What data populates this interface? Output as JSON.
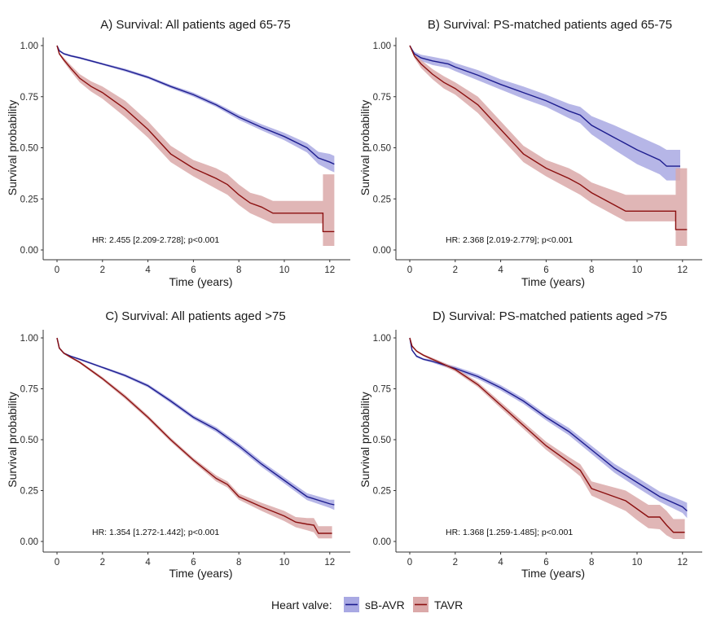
{
  "legend": {
    "title": "Heart valve:",
    "items": [
      {
        "label": "sB-AVR",
        "line_color": "#1d1d8f",
        "band_color": "#a9a9e3"
      },
      {
        "label": "TAVR",
        "line_color": "#8b1010",
        "band_color": "#dba9a9"
      }
    ]
  },
  "chart_data": [
    {
      "type": "line",
      "panel": "A",
      "title": "A) Survival: All patients aged 65-75",
      "xlabel": "Time (years)",
      "ylabel": "Survival probability",
      "x_ticks": [
        "0",
        "2",
        "4",
        "6",
        "8",
        "10",
        "12"
      ],
      "y_ticks": [
        "0.00",
        "0.25",
        "0.50",
        "0.75",
        "1.00"
      ],
      "xlim": [
        0,
        12.5
      ],
      "ylim": [
        0,
        1
      ],
      "annotation": "HR: 2.455 [2.209-2.728]; p<0.001",
      "series": [
        {
          "name": "sB-AVR",
          "x": [
            0,
            0.1,
            0.3,
            0.6,
            1,
            2,
            3,
            4,
            5,
            6,
            7,
            8,
            9,
            10,
            11,
            11.5,
            12,
            12.2
          ],
          "y": [
            1.0,
            0.975,
            0.96,
            0.95,
            0.94,
            0.91,
            0.88,
            0.845,
            0.8,
            0.76,
            0.71,
            0.65,
            0.6,
            0.555,
            0.5,
            0.45,
            0.43,
            0.42
          ],
          "lower": [
            1.0,
            0.97,
            0.955,
            0.945,
            0.935,
            0.905,
            0.873,
            0.838,
            0.792,
            0.75,
            0.7,
            0.637,
            0.585,
            0.537,
            0.477,
            0.42,
            0.39,
            0.38
          ],
          "upper": [
            1.0,
            0.98,
            0.965,
            0.955,
            0.945,
            0.915,
            0.887,
            0.852,
            0.808,
            0.77,
            0.72,
            0.663,
            0.615,
            0.573,
            0.523,
            0.48,
            0.47,
            0.46
          ]
        },
        {
          "name": "TAVR",
          "x": [
            0,
            0.1,
            0.3,
            0.6,
            1,
            1.5,
            2,
            3,
            4,
            5,
            6,
            7,
            7.5,
            8,
            8.5,
            9,
            9.5,
            11.7,
            11.7,
            12.2
          ],
          "y": [
            1.0,
            0.96,
            0.93,
            0.89,
            0.84,
            0.8,
            0.77,
            0.69,
            0.59,
            0.47,
            0.4,
            0.35,
            0.32,
            0.27,
            0.23,
            0.21,
            0.18,
            0.18,
            0.09,
            0.09
          ],
          "lower": [
            1.0,
            0.955,
            0.92,
            0.875,
            0.82,
            0.775,
            0.74,
            0.65,
            0.55,
            0.43,
            0.36,
            0.3,
            0.27,
            0.22,
            0.18,
            0.155,
            0.13,
            0.13,
            0.02,
            0.02
          ],
          "upper": [
            1.0,
            0.965,
            0.94,
            0.905,
            0.86,
            0.825,
            0.8,
            0.73,
            0.63,
            0.51,
            0.44,
            0.4,
            0.37,
            0.32,
            0.28,
            0.265,
            0.24,
            0.24,
            0.37,
            0.37
          ]
        }
      ]
    },
    {
      "type": "line",
      "panel": "B",
      "title": "B) Survival: PS-matched patients aged 65-75",
      "xlabel": "Time (years)",
      "ylabel": "Survival probability",
      "x_ticks": [
        "0",
        "2",
        "4",
        "6",
        "8",
        "10",
        "12"
      ],
      "y_ticks": [
        "0.00",
        "0.25",
        "0.50",
        "0.75",
        "1.00"
      ],
      "xlim": [
        0,
        12.5
      ],
      "ylim": [
        0,
        1
      ],
      "annotation": "HR: 2.368 [2.019-2.779]; p<0.001",
      "series": [
        {
          "name": "sB-AVR",
          "x": [
            0,
            0.2,
            0.5,
            1,
            1.7,
            2,
            3,
            4,
            5,
            6,
            7,
            7.5,
            8,
            9,
            10,
            11,
            11.3,
            11.9
          ],
          "y": [
            1.0,
            0.96,
            0.94,
            0.925,
            0.91,
            0.895,
            0.855,
            0.81,
            0.77,
            0.73,
            0.68,
            0.66,
            0.61,
            0.55,
            0.49,
            0.44,
            0.41,
            0.41
          ],
          "lower": [
            1.0,
            0.95,
            0.925,
            0.905,
            0.89,
            0.875,
            0.83,
            0.785,
            0.74,
            0.7,
            0.645,
            0.62,
            0.565,
            0.49,
            0.42,
            0.37,
            0.34,
            0.34
          ],
          "upper": [
            1.0,
            0.97,
            0.955,
            0.945,
            0.93,
            0.915,
            0.88,
            0.835,
            0.8,
            0.76,
            0.715,
            0.7,
            0.655,
            0.61,
            0.56,
            0.51,
            0.49,
            0.49
          ]
        },
        {
          "name": "TAVR",
          "x": [
            0,
            0.2,
            0.5,
            1,
            1.5,
            2,
            3,
            4,
            5,
            6,
            7,
            7.5,
            8,
            8.5,
            9,
            9.5,
            11.7,
            11.7,
            12.2
          ],
          "y": [
            1.0,
            0.95,
            0.91,
            0.86,
            0.82,
            0.79,
            0.71,
            0.59,
            0.47,
            0.4,
            0.35,
            0.32,
            0.28,
            0.25,
            0.22,
            0.19,
            0.19,
            0.1,
            0.1
          ],
          "lower": [
            1.0,
            0.94,
            0.89,
            0.835,
            0.79,
            0.76,
            0.67,
            0.55,
            0.43,
            0.36,
            0.3,
            0.27,
            0.23,
            0.2,
            0.17,
            0.14,
            0.14,
            0.02,
            0.02
          ],
          "upper": [
            1.0,
            0.96,
            0.93,
            0.885,
            0.85,
            0.82,
            0.75,
            0.63,
            0.51,
            0.44,
            0.4,
            0.37,
            0.33,
            0.31,
            0.29,
            0.27,
            0.27,
            0.4,
            0.4
          ]
        }
      ]
    },
    {
      "type": "line",
      "panel": "C",
      "title": "C) Survival: All patients aged >75",
      "xlabel": "Time (years)",
      "ylabel": "Survival probability",
      "x_ticks": [
        "0",
        "2",
        "4",
        "6",
        "8",
        "10",
        "12"
      ],
      "y_ticks": [
        "0.00",
        "0.25",
        "0.50",
        "0.75",
        "1.00"
      ],
      "xlim": [
        0,
        12.5
      ],
      "ylim": [
        0,
        1
      ],
      "annotation": "HR: 1.354 [1.272-1.442]; p<0.001",
      "series": [
        {
          "name": "sB-AVR",
          "x": [
            0,
            0.1,
            0.3,
            0.6,
            1,
            2,
            3,
            4,
            5,
            6,
            7,
            8,
            9,
            10,
            11,
            12,
            12.2
          ],
          "y": [
            1.0,
            0.95,
            0.925,
            0.91,
            0.895,
            0.855,
            0.815,
            0.765,
            0.69,
            0.61,
            0.55,
            0.47,
            0.38,
            0.3,
            0.22,
            0.185,
            0.18
          ],
          "lower": [
            1.0,
            0.947,
            0.922,
            0.906,
            0.89,
            0.85,
            0.808,
            0.757,
            0.68,
            0.6,
            0.538,
            0.457,
            0.366,
            0.285,
            0.203,
            0.165,
            0.155
          ],
          "upper": [
            1.0,
            0.953,
            0.928,
            0.914,
            0.9,
            0.86,
            0.822,
            0.773,
            0.7,
            0.62,
            0.562,
            0.483,
            0.394,
            0.315,
            0.237,
            0.205,
            0.205
          ]
        },
        {
          "name": "TAVR",
          "x": [
            0,
            0.1,
            0.3,
            0.6,
            1,
            2,
            3,
            4,
            5,
            6,
            7,
            7.5,
            8,
            9,
            10,
            10.5,
            11,
            11.3,
            11.5,
            12.1
          ],
          "y": [
            1.0,
            0.95,
            0.925,
            0.905,
            0.88,
            0.8,
            0.71,
            0.61,
            0.5,
            0.4,
            0.31,
            0.28,
            0.22,
            0.17,
            0.125,
            0.095,
            0.085,
            0.08,
            0.04,
            0.04
          ],
          "lower": [
            1.0,
            0.947,
            0.92,
            0.9,
            0.874,
            0.792,
            0.7,
            0.6,
            0.49,
            0.39,
            0.295,
            0.265,
            0.205,
            0.15,
            0.1,
            0.07,
            0.055,
            0.045,
            0.015,
            0.015
          ],
          "upper": [
            1.0,
            0.953,
            0.93,
            0.91,
            0.886,
            0.808,
            0.72,
            0.62,
            0.51,
            0.41,
            0.325,
            0.295,
            0.235,
            0.19,
            0.15,
            0.12,
            0.115,
            0.115,
            0.075,
            0.075
          ]
        }
      ]
    },
    {
      "type": "line",
      "panel": "D",
      "title": "D) Survival: PS-matched patients aged >75",
      "xlabel": "Time (years)",
      "ylabel": "Survival probability",
      "x_ticks": [
        "0",
        "2",
        "4",
        "6",
        "8",
        "10",
        "12"
      ],
      "y_ticks": [
        "0.00",
        "0.25",
        "0.50",
        "0.75",
        "1.00"
      ],
      "xlim": [
        0,
        12.5
      ],
      "ylim": [
        0,
        1
      ],
      "annotation": "HR: 1.368 [1.259-1.485]; p<0.001",
      "series": [
        {
          "name": "sB-AVR",
          "x": [
            0,
            0.1,
            0.3,
            0.6,
            1,
            2,
            3,
            4,
            5,
            6,
            7,
            8,
            9,
            10,
            11,
            12,
            12.2
          ],
          "y": [
            1.0,
            0.94,
            0.91,
            0.895,
            0.885,
            0.85,
            0.81,
            0.755,
            0.69,
            0.61,
            0.54,
            0.45,
            0.36,
            0.29,
            0.22,
            0.17,
            0.15
          ],
          "lower": [
            1.0,
            0.935,
            0.905,
            0.89,
            0.878,
            0.84,
            0.798,
            0.742,
            0.676,
            0.595,
            0.522,
            0.43,
            0.338,
            0.265,
            0.195,
            0.14,
            0.115
          ],
          "upper": [
            1.0,
            0.945,
            0.915,
            0.9,
            0.892,
            0.86,
            0.822,
            0.768,
            0.704,
            0.625,
            0.558,
            0.47,
            0.382,
            0.315,
            0.245,
            0.2,
            0.19
          ]
        },
        {
          "name": "TAVR",
          "x": [
            0,
            0.1,
            0.3,
            0.6,
            1,
            2,
            3,
            4,
            5,
            6,
            7,
            7.5,
            8,
            8.5,
            9,
            9.5,
            10,
            10.5,
            11,
            11.3,
            11.6,
            12.1
          ],
          "y": [
            1.0,
            0.96,
            0.935,
            0.915,
            0.895,
            0.845,
            0.77,
            0.67,
            0.57,
            0.47,
            0.39,
            0.35,
            0.26,
            0.24,
            0.22,
            0.2,
            0.16,
            0.12,
            0.12,
            0.08,
            0.045,
            0.045
          ],
          "lower": [
            1.0,
            0.955,
            0.93,
            0.91,
            0.888,
            0.835,
            0.758,
            0.655,
            0.553,
            0.45,
            0.365,
            0.32,
            0.225,
            0.2,
            0.175,
            0.15,
            0.105,
            0.065,
            0.06,
            0.03,
            0.012,
            0.012
          ],
          "upper": [
            1.0,
            0.965,
            0.94,
            0.92,
            0.902,
            0.855,
            0.782,
            0.685,
            0.587,
            0.49,
            0.415,
            0.38,
            0.295,
            0.28,
            0.265,
            0.25,
            0.215,
            0.18,
            0.18,
            0.15,
            0.11,
            0.11
          ]
        }
      ]
    }
  ]
}
